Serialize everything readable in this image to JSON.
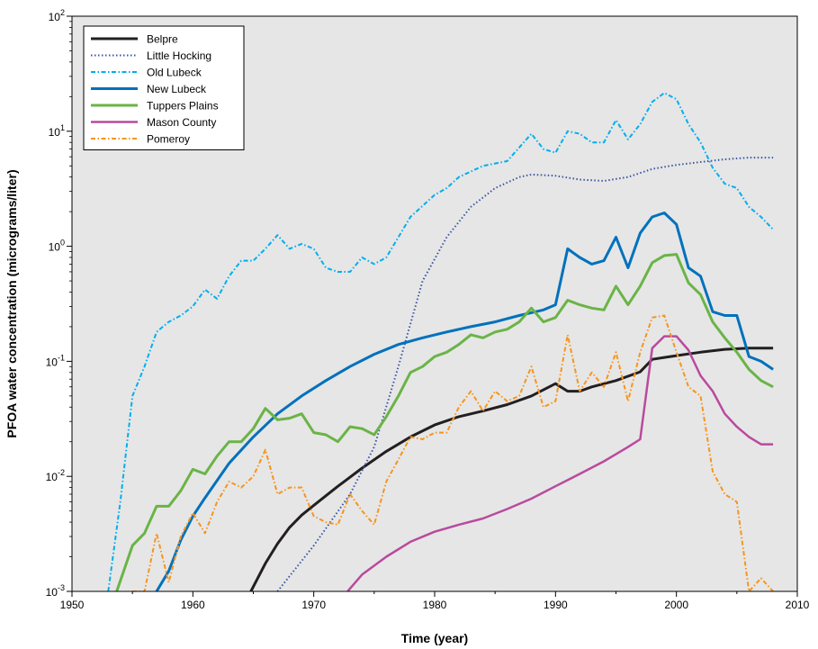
{
  "chart_data": {
    "type": "line",
    "title": "",
    "xlabel": "Time (year)",
    "ylabel": "PFOA water concentration (micrograms/liter)",
    "x_scale": "linear",
    "y_scale": "log",
    "xlim": [
      1950,
      2010
    ],
    "ylim": [
      0.001,
      100
    ],
    "x_ticks": [
      "1950",
      "1960",
      "1970",
      "1980",
      "1990",
      "2000",
      "2010"
    ],
    "y_ticks": [
      {
        "value": 100,
        "base": "10",
        "exp": "2"
      },
      {
        "value": 10,
        "base": "10",
        "exp": "1"
      },
      {
        "value": 1,
        "base": "10",
        "exp": "0"
      },
      {
        "value": 0.1,
        "base": "10",
        "exp": "-1"
      },
      {
        "value": 0.01,
        "base": "10",
        "exp": "-2"
      },
      {
        "value": 0.001,
        "base": "10",
        "exp": "-3"
      }
    ],
    "grid": false,
    "legend_position": "top-left",
    "plot_background": "#e6e6e6",
    "series": [
      {
        "name": "Belpre",
        "color": "#231f20",
        "dash": "solid",
        "width": 3,
        "x": [
          1964.8,
          1966,
          1967,
          1968,
          1969,
          1970,
          1972,
          1974,
          1976,
          1978,
          1980,
          1982,
          1984,
          1986,
          1988,
          1990,
          1991,
          1992,
          1993,
          1995,
          1997,
          1998,
          1999,
          2000,
          2002,
          2004,
          2006,
          2008
        ],
        "y": [
          0.001,
          0.00175,
          0.0026,
          0.0036,
          0.0046,
          0.0056,
          0.0082,
          0.0118,
          0.0165,
          0.022,
          0.028,
          0.033,
          0.037,
          0.042,
          0.05,
          0.064,
          0.055,
          0.055,
          0.06,
          0.068,
          0.081,
          0.104,
          0.108,
          0.112,
          0.12,
          0.127,
          0.13,
          0.13
        ]
      },
      {
        "name": "Little Hocking",
        "color": "#3a55a4",
        "dash": "dot",
        "width": 2,
        "x": [
          1967,
          1970,
          1973,
          1975,
          1977,
          1979,
          1981,
          1983,
          1985,
          1987,
          1988,
          1990,
          1992,
          1994,
          1996,
          1998,
          2000,
          2002,
          2004,
          2006,
          2008
        ],
        "y": [
          0.001,
          0.0025,
          0.007,
          0.018,
          0.09,
          0.5,
          1.2,
          2.2,
          3.2,
          4.0,
          4.2,
          4.1,
          3.8,
          3.7,
          4.0,
          4.7,
          5.1,
          5.4,
          5.7,
          5.9,
          5.9
        ]
      },
      {
        "name": "Old Lubeck",
        "color": "#00aeef",
        "dash": "dashdot",
        "width": 2,
        "x": [
          1953,
          1954,
          1955,
          1956,
          1957,
          1958,
          1959,
          1960,
          1961,
          1962,
          1963,
          1964,
          1965,
          1966,
          1967,
          1968,
          1969,
          1970,
          1971,
          1972,
          1973,
          1974,
          1975,
          1976,
          1978,
          1980,
          1981,
          1982,
          1984,
          1986,
          1988,
          1989,
          1990,
          1991,
          1992,
          1993,
          1994,
          1995,
          1996,
          1997,
          1998,
          1999,
          2000,
          2001,
          2002,
          2003,
          2004,
          2005,
          2006,
          2007,
          2008
        ],
        "y": [
          0.001,
          0.006,
          0.05,
          0.09,
          0.18,
          0.22,
          0.25,
          0.3,
          0.42,
          0.35,
          0.55,
          0.75,
          0.75,
          0.95,
          1.25,
          0.95,
          1.05,
          0.95,
          0.65,
          0.6,
          0.6,
          0.8,
          0.7,
          0.8,
          1.8,
          2.8,
          3.2,
          4.0,
          5.0,
          5.5,
          9.5,
          7.0,
          6.5,
          10.0,
          9.5,
          8.0,
          8.0,
          12.5,
          8.5,
          11.5,
          18.0,
          21.5,
          19.0,
          11.5,
          8.0,
          4.8,
          3.5,
          3.2,
          2.2,
          1.8,
          1.4
        ]
      },
      {
        "name": "New Lubeck",
        "color": "#0071bc",
        "dash": "solid",
        "width": 3,
        "x": [
          1957,
          1958,
          1959,
          1960,
          1961,
          1963,
          1965,
          1967,
          1969,
          1971,
          1973,
          1975,
          1977,
          1979,
          1981,
          1983,
          1985,
          1987,
          1989,
          1990,
          1991,
          1992,
          1993,
          1994,
          1995,
          1996,
          1997,
          1998,
          1999,
          2000,
          2001,
          2002,
          2003,
          2004,
          2005,
          2006,
          2007,
          2008
        ],
        "y": [
          0.001,
          0.0015,
          0.0028,
          0.0045,
          0.0065,
          0.013,
          0.022,
          0.035,
          0.05,
          0.068,
          0.09,
          0.115,
          0.14,
          0.16,
          0.18,
          0.2,
          0.22,
          0.25,
          0.28,
          0.31,
          0.95,
          0.8,
          0.7,
          0.75,
          1.2,
          0.65,
          1.3,
          1.8,
          1.95,
          1.55,
          0.65,
          0.55,
          0.27,
          0.25,
          0.25,
          0.11,
          0.1,
          0.085
        ]
      },
      {
        "name": "Tuppers Plains",
        "color": "#6ab446",
        "dash": "solid",
        "width": 3,
        "x": [
          1953.7,
          1955,
          1956,
          1957,
          1958,
          1959,
          1960,
          1961,
          1962,
          1963,
          1964,
          1965,
          1966,
          1967,
          1968,
          1969,
          1970,
          1971,
          1972,
          1973,
          1974,
          1975,
          1976,
          1977,
          1978,
          1979,
          1980,
          1981,
          1982,
          1983,
          1984,
          1985,
          1986,
          1987,
          1988,
          1989,
          1990,
          1991,
          1992,
          1993,
          1994,
          1995,
          1996,
          1997,
          1998,
          1999,
          2000,
          2001,
          2002,
          2003,
          2004,
          2005,
          2006,
          2007,
          2008
        ],
        "y": [
          0.001,
          0.0025,
          0.0032,
          0.0055,
          0.0055,
          0.0075,
          0.0115,
          0.0105,
          0.015,
          0.02,
          0.02,
          0.026,
          0.039,
          0.031,
          0.032,
          0.035,
          0.024,
          0.023,
          0.02,
          0.027,
          0.026,
          0.023,
          0.033,
          0.05,
          0.08,
          0.09,
          0.11,
          0.12,
          0.14,
          0.17,
          0.16,
          0.18,
          0.19,
          0.22,
          0.29,
          0.22,
          0.24,
          0.34,
          0.31,
          0.29,
          0.28,
          0.45,
          0.31,
          0.45,
          0.72,
          0.83,
          0.85,
          0.48,
          0.38,
          0.22,
          0.16,
          0.12,
          0.085,
          0.068,
          0.06
        ]
      },
      {
        "name": "Mason County",
        "color": "#b94a9e",
        "dash": "solid",
        "width": 2.5,
        "x": [
          1972.8,
          1974,
          1976,
          1978,
          1980,
          1982,
          1984,
          1986,
          1988,
          1990,
          1992,
          1994,
          1996,
          1997,
          1998,
          1999,
          2000,
          2001,
          2002,
          2003,
          2004,
          2005,
          2006,
          2007,
          2008
        ],
        "y": [
          0.001,
          0.0014,
          0.002,
          0.0027,
          0.0033,
          0.0038,
          0.0043,
          0.0052,
          0.0064,
          0.0082,
          0.0105,
          0.0135,
          0.018,
          0.021,
          0.13,
          0.165,
          0.165,
          0.125,
          0.075,
          0.055,
          0.035,
          0.027,
          0.022,
          0.019,
          0.019
        ]
      },
      {
        "name": "Pomeroy",
        "color": "#f7941d",
        "dash": "dashdot",
        "width": 2,
        "x": [
          1955,
          1955.5,
          1956,
          1957,
          1958,
          1959,
          1960,
          1961,
          1962,
          1963,
          1964,
          1965,
          1966,
          1967,
          1968,
          1969,
          1970,
          1971,
          1972,
          1973,
          1974,
          1975,
          1976,
          1977,
          1978,
          1979,
          1980,
          1981,
          1982,
          1983,
          1984,
          1985,
          1986,
          1987,
          1988,
          1989,
          1990,
          1991,
          1992,
          1993,
          1994,
          1995,
          1996,
          1997,
          1998,
          1999,
          2000,
          2001,
          2002,
          2003,
          2004,
          2005,
          2006,
          2007,
          2008
        ],
        "y": [
          0.001,
          0.001,
          0.001,
          0.0032,
          0.0012,
          0.003,
          0.0048,
          0.0032,
          0.006,
          0.009,
          0.008,
          0.01,
          0.017,
          0.007,
          0.008,
          0.008,
          0.0045,
          0.004,
          0.0038,
          0.007,
          0.005,
          0.0038,
          0.009,
          0.014,
          0.022,
          0.021,
          0.024,
          0.024,
          0.04,
          0.055,
          0.037,
          0.055,
          0.045,
          0.05,
          0.09,
          0.04,
          0.045,
          0.17,
          0.055,
          0.08,
          0.06,
          0.12,
          0.045,
          0.12,
          0.24,
          0.25,
          0.12,
          0.06,
          0.05,
          0.011,
          0.007,
          0.006,
          0.001,
          0.0013,
          0.001
        ]
      }
    ]
  }
}
